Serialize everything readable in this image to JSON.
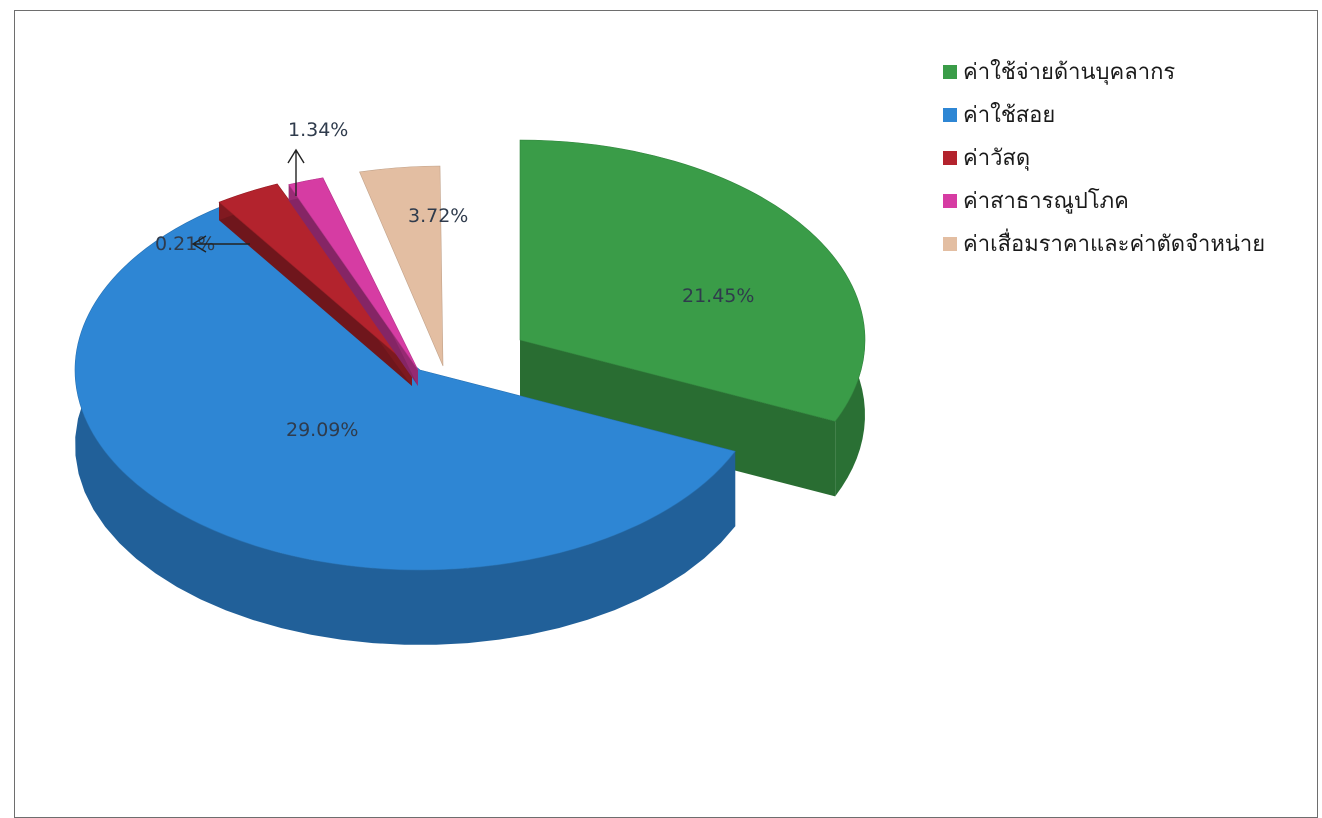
{
  "chart_data": {
    "type": "pie",
    "title": "",
    "slices": [
      {
        "label": "ค่าใช้จ่ายด้านบุคลากร",
        "value_label": "21.45%",
        "value": 21.45,
        "color": "#3a9c48"
      },
      {
        "label": "ค่าใช้สอย",
        "value_label": "29.09%",
        "value": 29.09,
        "color": "#2e86d4"
      },
      {
        "label": "ค่าวัสดุ",
        "value_label": "0.21%",
        "value": 0.21,
        "color": "#b3232d"
      },
      {
        "label": "ค่าสาธารณูปโภค",
        "value_label": "1.34%",
        "value": 1.34,
        "color": "#d63ca3"
      },
      {
        "label": "ค่าเสื่อมราคาและค่าตัดจำหน่าย",
        "value_label": "3.72%",
        "value": 3.72,
        "color": "#e3bea2"
      }
    ],
    "legend_position": "top-right",
    "style": "3d-exploded"
  }
}
